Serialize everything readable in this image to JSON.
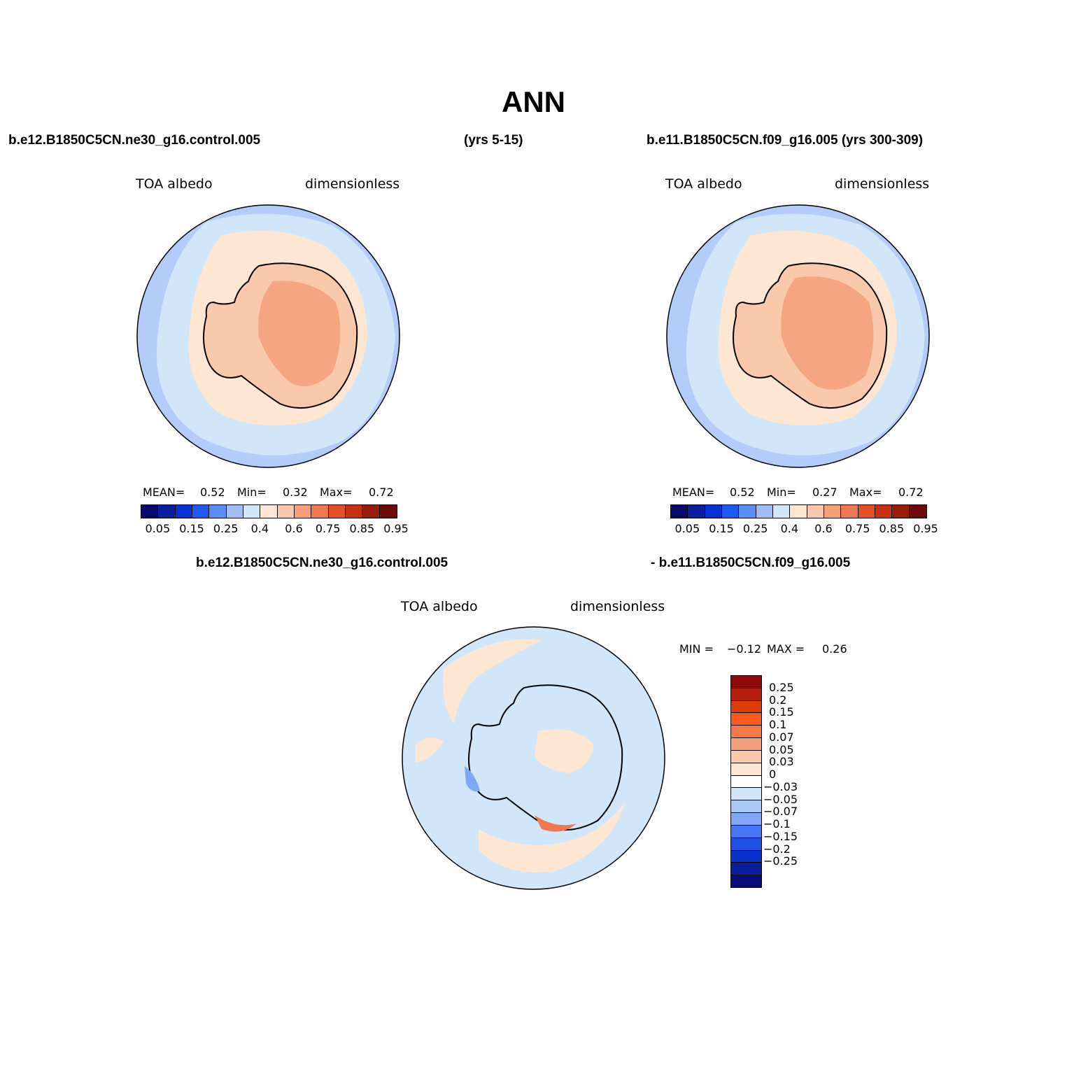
{
  "title": "ANN",
  "panel1": {
    "case": "b.e12.B1850C5CN.ne30_g16.control.005",
    "years": "(yrs 5-15)",
    "variable": "TOA albedo",
    "units": "dimensionless",
    "stats": {
      "mean_label": "MEAN=",
      "mean": "0.52",
      "min_label": "Min=",
      "min": "0.32",
      "max_label": "Max=",
      "max": "0.72"
    }
  },
  "panel2": {
    "case": "b.e11.B1850C5CN.f09_g16.005 (yrs 300-309)",
    "variable": "TOA albedo",
    "units": "dimensionless",
    "stats": {
      "mean_label": "MEAN=",
      "mean": "0.52",
      "min_label": "Min=",
      "min": "0.27",
      "max_label": "Max=",
      "max": "0.72"
    }
  },
  "diff_panel": {
    "case_a": "b.e12.B1850C5CN.ne30_g16.control.005",
    "case_b": "- b.e11.B1850C5CN.f09_g16.005",
    "variable": "TOA albedo",
    "units": "dimensionless",
    "stats": {
      "min_label": "MIN =",
      "min": "−0.12",
      "max_label": "MAX =",
      "max": "0.26"
    }
  },
  "colorbar_abs": {
    "colors": [
      "#0a0a6e",
      "#0a1e9e",
      "#0a32d2",
      "#1e5af0",
      "#5a8cf5",
      "#a0bef5",
      "#d2e6fa",
      "#fde6d2",
      "#fac8aa",
      "#f5a078",
      "#f07850",
      "#e65028",
      "#c83214",
      "#961e0a",
      "#6e0a0a"
    ],
    "tick_labels": [
      "0.05",
      "0.15",
      "0.25",
      "0.4",
      "0.6",
      "0.75",
      "0.85",
      "0.95"
    ]
  },
  "colorbar_diff": {
    "colors": [
      "#8c0a0a",
      "#b41e0a",
      "#dc3c0a",
      "#fa5a1e",
      "#f57846",
      "#f5a07d",
      "#fac8aa",
      "#fde6d2",
      "#ffffff",
      "#d2e6fa",
      "#a8c8f5",
      "#7ea8f5",
      "#4678f5",
      "#1e50e6",
      "#0a32c8",
      "#0a1e9e",
      "#0a0a78"
    ],
    "tick_labels": [
      "0.25",
      "0.2",
      "0.15",
      "0.1",
      "0.07",
      "0.05",
      "0.03",
      "0",
      "−0.03",
      "−0.05",
      "−0.07",
      "−0.1",
      "−0.15",
      "−0.2",
      "−0.25"
    ]
  },
  "map_colors": {
    "ocean_far": "#b4ccfa",
    "ocean_mid": "#d2e6fa",
    "ice_edge": "#fde6d2",
    "coast": "#fac8aa",
    "interior": "#f5a582",
    "diff_neutral": "#d2e6fa",
    "diff_warm": "#fde6d2",
    "diff_strong": "#f07850",
    "diff_cold": "#7ea8f5"
  }
}
